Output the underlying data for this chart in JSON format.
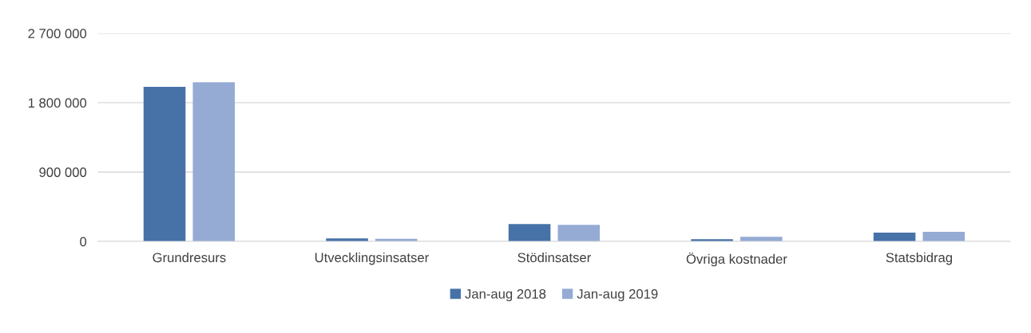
{
  "chart_data": {
    "type": "bar",
    "categories": [
      "Grundresurs",
      "Utvecklingsinsatser",
      "Stödinsatser",
      "Övriga kostnader",
      "Statsbidrag"
    ],
    "series": [
      {
        "name": "Jan-aug 2018",
        "color": "#4672a8",
        "values": [
          2005000,
          40000,
          225000,
          30000,
          115000
        ]
      },
      {
        "name": "Jan-aug 2019",
        "color": "#95abd4",
        "values": [
          2066000,
          35000,
          215000,
          60000,
          125000
        ]
      }
    ],
    "ylim": [
      0,
      2700000
    ],
    "yticks": [
      {
        "value": 0,
        "label": "0"
      },
      {
        "value": 900000,
        "label": "900 000"
      },
      {
        "value": 1800000,
        "label": "1 800 000"
      },
      {
        "value": 2700000,
        "label": "2 700 000"
      }
    ],
    "grid": "y",
    "legend": "bottom"
  }
}
